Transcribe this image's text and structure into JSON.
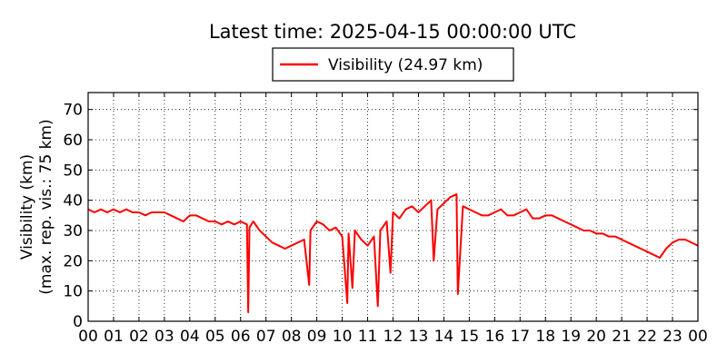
{
  "chart_data": {
    "type": "line",
    "title": "Latest time: 2025-04-15 00:00:00 UTC",
    "ylabel_lines": [
      "Visibility (km)",
      "(max. rep. vis.: 75 km)"
    ],
    "xlabel": "",
    "legend": {
      "label": "Visibility (24.97 km)",
      "placement": "top-center",
      "color": "#ff0000"
    },
    "x_ticks": [
      "00",
      "01",
      "02",
      "03",
      "04",
      "05",
      "06",
      "07",
      "08",
      "09",
      "10",
      "11",
      "12",
      "13",
      "14",
      "15",
      "16",
      "17",
      "18",
      "19",
      "20",
      "21",
      "22",
      "23",
      "00"
    ],
    "y_ticks": [
      "0",
      "10",
      "20",
      "30",
      "40",
      "50",
      "60",
      "70"
    ],
    "xlim_hours": [
      0,
      24
    ],
    "ylim": [
      0,
      75
    ],
    "grid": true,
    "series": [
      {
        "name": "Visibility (24.97 km)",
        "color": "#ff0000",
        "x_hours": [
          0.0,
          0.25,
          0.5,
          0.75,
          1.0,
          1.25,
          1.5,
          1.75,
          2.0,
          2.25,
          2.5,
          2.75,
          3.0,
          3.25,
          3.5,
          3.75,
          4.0,
          4.25,
          4.5,
          4.75,
          5.0,
          5.25,
          5.5,
          5.75,
          6.0,
          6.25,
          6.3,
          6.35,
          6.5,
          6.75,
          7.0,
          7.25,
          7.5,
          7.75,
          8.0,
          8.25,
          8.5,
          8.7,
          8.75,
          9.0,
          9.25,
          9.5,
          9.75,
          10.0,
          10.2,
          10.25,
          10.4,
          10.5,
          10.75,
          11.0,
          11.25,
          11.4,
          11.5,
          11.75,
          11.9,
          12.0,
          12.25,
          12.5,
          12.75,
          13.0,
          13.25,
          13.5,
          13.6,
          13.75,
          14.0,
          14.25,
          14.5,
          14.55,
          14.75,
          15.0,
          15.25,
          15.5,
          15.75,
          16.0,
          16.25,
          16.5,
          16.75,
          17.0,
          17.25,
          17.5,
          17.75,
          18.0,
          18.25,
          18.5,
          18.75,
          19.0,
          19.25,
          19.5,
          19.75,
          20.0,
          20.25,
          20.5,
          20.75,
          21.0,
          21.25,
          21.5,
          21.75,
          22.0,
          22.25,
          22.5,
          22.75,
          23.0,
          23.25,
          23.5,
          23.75,
          24.0
        ],
        "y": [
          37,
          36,
          37,
          36,
          37,
          36,
          37,
          36,
          36,
          35,
          36,
          36,
          36,
          35,
          34,
          33,
          35,
          35,
          34,
          33,
          33,
          32,
          33,
          32,
          33,
          32,
          3,
          31,
          33,
          30,
          28,
          26,
          25,
          24,
          25,
          26,
          27,
          12,
          30,
          33,
          32,
          30,
          31,
          28,
          6,
          29,
          11,
          30,
          27,
          25,
          28,
          5,
          30,
          33,
          16,
          36,
          34,
          37,
          38,
          36,
          38,
          40,
          20,
          37,
          39,
          41,
          42,
          9,
          38,
          37,
          36,
          35,
          35,
          36,
          37,
          35,
          35,
          36,
          37,
          34,
          34,
          35,
          35,
          34,
          33,
          32,
          31,
          30,
          30,
          29,
          29,
          28,
          28,
          27,
          26,
          25,
          24,
          23,
          22,
          21,
          24,
          26,
          27,
          27,
          26,
          25
        ]
      }
    ]
  }
}
